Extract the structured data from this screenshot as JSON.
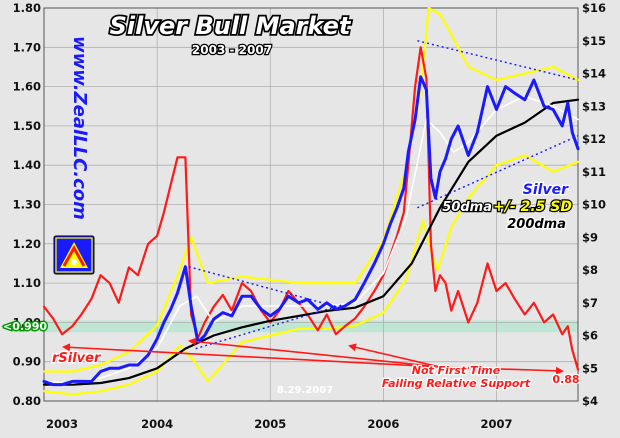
{
  "chart_data": {
    "type": "line",
    "title": "Silver Bull Market",
    "subtitle": "2003 - 2007",
    "watermark": "www.ZealLLC.com",
    "left_axis": {
      "ylim": [
        0.8,
        1.8
      ],
      "ticks": [
        "0.80",
        "0.90",
        "1.00",
        "1.10",
        "1.20",
        "1.30",
        "1.40",
        "1.50",
        "1.60",
        "1.70",
        "1.80"
      ]
    },
    "right_axis": {
      "ylim": [
        4,
        16
      ],
      "ticks": [
        "$4",
        "$5",
        "$6",
        "$7",
        "$8",
        "$9",
        "$10",
        "$11",
        "$12",
        "$13",
        "$14",
        "$15",
        "$16"
      ]
    },
    "x_axis": {
      "range": [
        2003.0,
        2007.72
      ],
      "ticks": [
        "2003",
        "2004",
        "2005",
        "2006",
        "2007"
      ]
    },
    "grid": true,
    "legend": {
      "title_label": "Silver",
      "line2_a": "50dma",
      "line2_b": "+/- 2.5 SD",
      "line3": "200dma"
    },
    "highlight_band": {
      "axis": "left",
      "range": [
        0.975,
        1.005
      ],
      "color": "#bfe6d4"
    },
    "annotations": {
      "support_label": "<0.990",
      "series_label": "rSilver",
      "note_line1": "Not First Time",
      "note_line2": "Failing Relative Support",
      "date_label": "8.29.2007",
      "end_value": "0.88"
    },
    "colors": {
      "silver": "#1a1aff",
      "rsilver": "#ff1a1a",
      "dma50": "#ffffff",
      "dma200": "#000000",
      "bands": "#ffff00",
      "plot_bg": "#e6e6e6",
      "grid": "#b0b0b0",
      "title": "#ffffff",
      "watermark": "#1a1aff",
      "annotation": "#ff1a1a",
      "support": "#00aa00"
    },
    "series": [
      {
        "name": "Silver",
        "axis": "right",
        "x": [
          2003.0,
          2003.08,
          2003.16,
          2003.25,
          2003.33,
          2003.42,
          2003.5,
          2003.58,
          2003.66,
          2003.75,
          2003.83,
          2003.92,
          2004.0,
          2004.06,
          2004.12,
          2004.18,
          2004.25,
          2004.3,
          2004.36,
          2004.42,
          2004.5,
          2004.58,
          2004.66,
          2004.75,
          2004.83,
          2004.92,
          2005.0,
          2005.08,
          2005.16,
          2005.25,
          2005.33,
          2005.42,
          2005.5,
          2005.58,
          2005.66,
          2005.75,
          2005.83,
          2005.92,
          2006.0,
          2006.06,
          2006.12,
          2006.18,
          2006.22,
          2006.28,
          2006.33,
          2006.38,
          2006.42,
          2006.46,
          2006.5,
          2006.55,
          2006.6,
          2006.66,
          2006.75,
          2006.83,
          2006.92,
          2007.0,
          2007.08,
          2007.16,
          2007.25,
          2007.33,
          2007.42,
          2007.5,
          2007.58,
          2007.63,
          2007.67,
          2007.72
        ],
        "values": [
          4.6,
          4.5,
          4.5,
          4.6,
          4.6,
          4.6,
          4.9,
          5.0,
          5.0,
          5.1,
          5.1,
          5.4,
          5.9,
          6.4,
          6.8,
          7.3,
          8.1,
          6.9,
          5.8,
          6.0,
          6.5,
          6.7,
          6.6,
          7.2,
          7.2,
          6.8,
          6.6,
          6.8,
          7.2,
          7.0,
          7.1,
          6.8,
          7.0,
          6.8,
          6.9,
          7.1,
          7.6,
          8.2,
          8.8,
          9.4,
          9.9,
          10.5,
          11.6,
          12.6,
          13.9,
          13.5,
          10.8,
          10.2,
          11.0,
          11.4,
          12.0,
          12.4,
          11.5,
          12.2,
          13.6,
          12.9,
          13.6,
          13.4,
          13.2,
          13.8,
          13.0,
          12.9,
          12.4,
          13.1,
          12.2,
          11.7
        ]
      },
      {
        "name": "rSilver",
        "axis": "left",
        "x": [
          2003.0,
          2003.08,
          2003.16,
          2003.25,
          2003.33,
          2003.42,
          2003.5,
          2003.58,
          2003.66,
          2003.75,
          2003.83,
          2003.92,
          2004.0,
          2004.06,
          2004.12,
          2004.18,
          2004.25,
          2004.3,
          2004.36,
          2004.42,
          2004.5,
          2004.58,
          2004.66,
          2004.75,
          2004.83,
          2004.92,
          2005.0,
          2005.08,
          2005.16,
          2005.25,
          2005.33,
          2005.42,
          2005.5,
          2005.58,
          2005.66,
          2005.75,
          2005.83,
          2005.92,
          2006.0,
          2006.06,
          2006.12,
          2006.18,
          2006.22,
          2006.28,
          2006.33,
          2006.38,
          2006.42,
          2006.46,
          2006.5,
          2006.55,
          2006.6,
          2006.66,
          2006.75,
          2006.83,
          2006.92,
          2007.0,
          2007.08,
          2007.16,
          2007.25,
          2007.33,
          2007.42,
          2007.5,
          2007.58,
          2007.63,
          2007.67,
          2007.72
        ],
        "values": [
          1.04,
          1.01,
          0.97,
          0.99,
          1.02,
          1.06,
          1.12,
          1.1,
          1.05,
          1.14,
          1.12,
          1.2,
          1.22,
          1.28,
          1.35,
          1.42,
          1.42,
          1.02,
          0.96,
          1.0,
          1.04,
          1.07,
          1.03,
          1.1,
          1.08,
          1.03,
          1.0,
          1.03,
          1.08,
          1.05,
          1.02,
          0.98,
          1.02,
          0.97,
          0.99,
          1.01,
          1.04,
          1.08,
          1.12,
          1.17,
          1.22,
          1.28,
          1.4,
          1.6,
          1.7,
          1.62,
          1.2,
          1.08,
          1.12,
          1.1,
          1.03,
          1.08,
          1.0,
          1.05,
          1.15,
          1.08,
          1.1,
          1.06,
          1.02,
          1.05,
          1.0,
          1.02,
          0.97,
          0.99,
          0.93,
          0.88
        ]
      },
      {
        "name": "50dma",
        "axis": "right",
        "x": [
          2003.0,
          2003.25,
          2003.5,
          2003.75,
          2004.0,
          2004.2,
          2004.35,
          2004.5,
          2004.75,
          2005.0,
          2005.25,
          2005.5,
          2005.75,
          2006.0,
          2006.2,
          2006.38,
          2006.5,
          2006.62,
          2006.75,
          2007.0,
          2007.25,
          2007.5,
          2007.72
        ],
        "values": [
          4.6,
          4.55,
          4.7,
          5.0,
          5.6,
          6.9,
          7.2,
          6.4,
          6.9,
          6.9,
          6.9,
          6.9,
          7.0,
          7.9,
          9.6,
          12.6,
          12.2,
          11.6,
          11.9,
          12.9,
          13.3,
          13.0,
          12.6
        ]
      },
      {
        "name": "200dma",
        "axis": "right",
        "x": [
          2003.0,
          2003.25,
          2003.5,
          2003.75,
          2004.0,
          2004.25,
          2004.5,
          2004.75,
          2005.0,
          2005.25,
          2005.5,
          2005.75,
          2006.0,
          2006.25,
          2006.5,
          2006.75,
          2007.0,
          2007.25,
          2007.5,
          2007.72
        ],
        "values": [
          4.5,
          4.5,
          4.55,
          4.7,
          5.0,
          5.6,
          6.0,
          6.25,
          6.45,
          6.6,
          6.75,
          6.85,
          7.2,
          8.2,
          9.9,
          11.3,
          12.1,
          12.5,
          13.1,
          13.2
        ]
      },
      {
        "name": "+2.5 SD",
        "axis": "right",
        "x": [
          2003.0,
          2003.25,
          2003.5,
          2003.75,
          2004.0,
          2004.2,
          2004.3,
          2004.45,
          2004.75,
          2005.0,
          2005.25,
          2005.5,
          2005.75,
          2006.0,
          2006.2,
          2006.33,
          2006.4,
          2006.5,
          2006.6,
          2006.75,
          2007.0,
          2007.25,
          2007.5,
          2007.72
        ],
        "values": [
          4.9,
          4.9,
          5.1,
          5.5,
          6.3,
          8.0,
          9.0,
          7.6,
          7.8,
          7.7,
          7.6,
          7.6,
          7.6,
          8.9,
          11.1,
          13.5,
          16.0,
          15.8,
          15.2,
          14.2,
          13.8,
          14.0,
          14.2,
          13.8
        ]
      },
      {
        "name": "-2.5 SD",
        "axis": "right",
        "x": [
          2003.0,
          2003.25,
          2003.5,
          2003.75,
          2004.0,
          2004.2,
          2004.33,
          2004.45,
          2004.75,
          2005.0,
          2005.25,
          2005.5,
          2005.75,
          2006.0,
          2006.2,
          2006.35,
          2006.42,
          2006.48,
          2006.6,
          2006.75,
          2007.0,
          2007.25,
          2007.5,
          2007.72
        ],
        "values": [
          4.3,
          4.2,
          4.3,
          4.5,
          4.9,
          5.7,
          5.2,
          4.6,
          5.8,
          6.0,
          6.2,
          6.2,
          6.3,
          6.7,
          7.7,
          9.5,
          8.6,
          8.0,
          9.3,
          10.2,
          11.2,
          11.5,
          11.0,
          11.3
        ]
      }
    ],
    "trendlines": [
      {
        "axis": "right",
        "x": [
          2004.28,
          2005.62
        ],
        "values": [
          8.1,
          6.85
        ]
      },
      {
        "axis": "right",
        "x": [
          2004.34,
          2005.65
        ],
        "values": [
          5.6,
          6.95
        ]
      },
      {
        "axis": "right",
        "x": [
          2006.3,
          2007.72
        ],
        "values": [
          15.0,
          13.8
        ]
      },
      {
        "axis": "right",
        "x": [
          2006.3,
          2007.72
        ],
        "values": [
          9.9,
          12.1
        ]
      }
    ]
  }
}
